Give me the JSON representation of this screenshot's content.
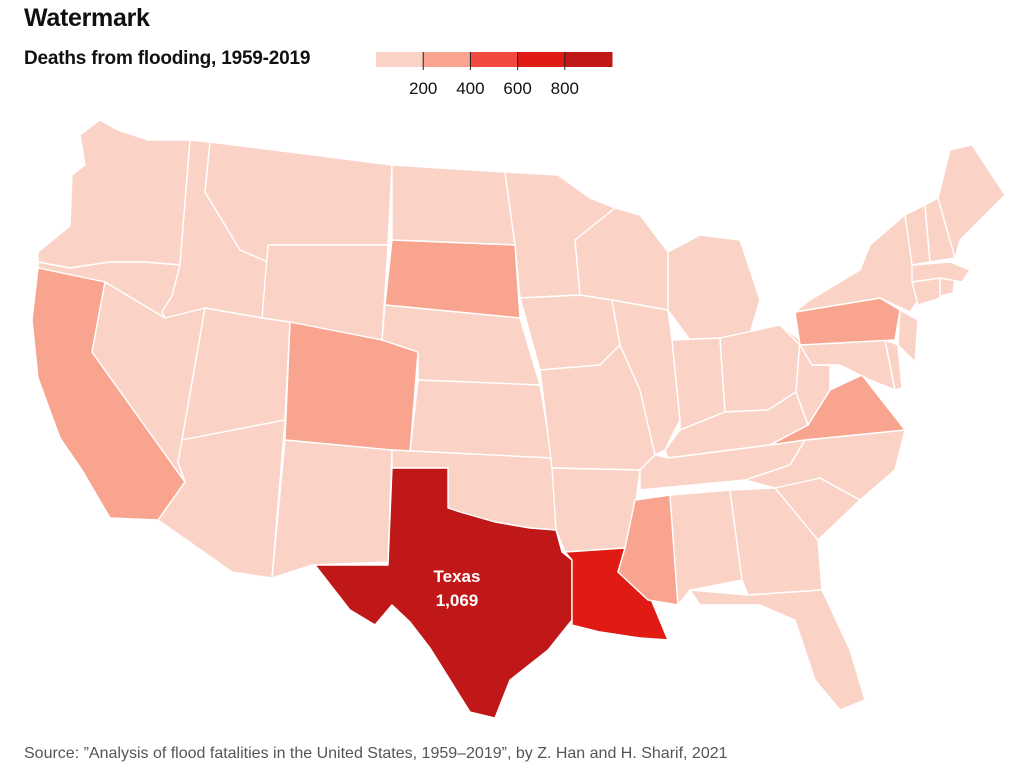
{
  "header": {
    "watermark": "Watermark",
    "subtitle": "Deaths from flooding, 1959-2019"
  },
  "legend": {
    "tick_labels": [
      "200",
      "400",
      "600",
      "800"
    ],
    "colors": [
      "#fbd2c6",
      "#f8a48e",
      "#f24a40",
      "#e01b14",
      "#c01818"
    ]
  },
  "map": {
    "callout": {
      "state": "Texas",
      "value": "1,069"
    },
    "state_border_color": "#ffffff",
    "categories": {
      "low": "#fbd2c6",
      "mid": "#f8a48e",
      "high": "#e01b14",
      "max": "#c01818"
    },
    "states": [
      {
        "name": "Washington",
        "category": "low"
      },
      {
        "name": "Oregon",
        "category": "low"
      },
      {
        "name": "California",
        "category": "mid"
      },
      {
        "name": "Idaho",
        "category": "low"
      },
      {
        "name": "Nevada",
        "category": "low"
      },
      {
        "name": "Montana",
        "category": "low"
      },
      {
        "name": "Wyoming",
        "category": "low"
      },
      {
        "name": "Utah",
        "category": "low"
      },
      {
        "name": "Arizona",
        "category": "low"
      },
      {
        "name": "Colorado",
        "category": "mid"
      },
      {
        "name": "New Mexico",
        "category": "low"
      },
      {
        "name": "North Dakota",
        "category": "low"
      },
      {
        "name": "South Dakota",
        "category": "mid"
      },
      {
        "name": "Nebraska",
        "category": "low"
      },
      {
        "name": "Kansas",
        "category": "low"
      },
      {
        "name": "Oklahoma",
        "category": "low"
      },
      {
        "name": "Texas",
        "category": "max"
      },
      {
        "name": "Minnesota",
        "category": "low"
      },
      {
        "name": "Iowa",
        "category": "low"
      },
      {
        "name": "Missouri",
        "category": "low"
      },
      {
        "name": "Arkansas",
        "category": "low"
      },
      {
        "name": "Louisiana",
        "category": "high"
      },
      {
        "name": "Wisconsin",
        "category": "low"
      },
      {
        "name": "Illinois",
        "category": "low"
      },
      {
        "name": "Michigan",
        "category": "low"
      },
      {
        "name": "Indiana",
        "category": "low"
      },
      {
        "name": "Ohio",
        "category": "low"
      },
      {
        "name": "Kentucky",
        "category": "low"
      },
      {
        "name": "Tennessee",
        "category": "low"
      },
      {
        "name": "Mississippi",
        "category": "mid"
      },
      {
        "name": "Alabama",
        "category": "low"
      },
      {
        "name": "Georgia",
        "category": "low"
      },
      {
        "name": "Florida",
        "category": "low"
      },
      {
        "name": "South Carolina",
        "category": "low"
      },
      {
        "name": "North Carolina",
        "category": "low"
      },
      {
        "name": "Virginia",
        "category": "mid"
      },
      {
        "name": "West Virginia",
        "category": "low"
      },
      {
        "name": "Maryland",
        "category": "low"
      },
      {
        "name": "Delaware",
        "category": "low"
      },
      {
        "name": "Pennsylvania",
        "category": "mid"
      },
      {
        "name": "New Jersey",
        "category": "low"
      },
      {
        "name": "New York",
        "category": "low"
      },
      {
        "name": "Connecticut",
        "category": "low"
      },
      {
        "name": "Rhode Island",
        "category": "low"
      },
      {
        "name": "Massachusetts",
        "category": "low"
      },
      {
        "name": "Vermont",
        "category": "low"
      },
      {
        "name": "New Hampshire",
        "category": "low"
      },
      {
        "name": "Maine",
        "category": "low"
      }
    ]
  },
  "source": "Source: ”Analysis of flood fatalities in the United States, 1959–2019”, by Z. Han and H. Sharif, 2021"
}
